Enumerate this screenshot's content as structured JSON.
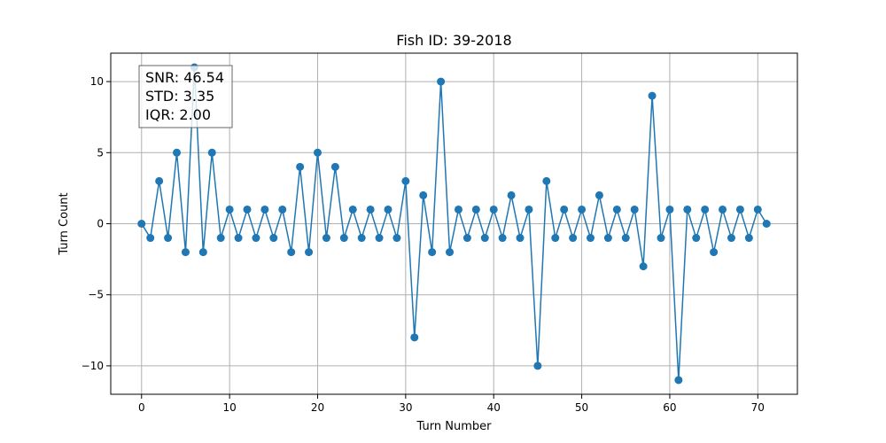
{
  "chart_data": {
    "type": "line",
    "title": "Fish ID: 39-2018",
    "xlabel": "Turn Number",
    "ylabel": "Turn Count",
    "xlim": [
      -3.5,
      74.5
    ],
    "ylim": [
      -12,
      12
    ],
    "x_ticks": [
      0,
      10,
      20,
      30,
      40,
      50,
      60,
      70
    ],
    "y_ticks": [
      -10,
      -5,
      0,
      5,
      10
    ],
    "x_tick_labels": [
      "0",
      "10",
      "20",
      "30",
      "40",
      "50",
      "60",
      "70"
    ],
    "y_tick_labels": [
      "−10",
      "−5",
      "0",
      "5",
      "10"
    ],
    "grid": true,
    "series": [
      {
        "color": "#1f77b4",
        "marker": "circle",
        "x": [
          0,
          1,
          2,
          3,
          4,
          5,
          6,
          7,
          8,
          9,
          10,
          11,
          12,
          13,
          14,
          15,
          16,
          17,
          18,
          19,
          20,
          21,
          22,
          23,
          24,
          25,
          26,
          27,
          28,
          29,
          30,
          31,
          32,
          33,
          34,
          35,
          36,
          37,
          38,
          39,
          40,
          41,
          42,
          43,
          44,
          45,
          46,
          47,
          48,
          49,
          50,
          51,
          52,
          53,
          54,
          55,
          56,
          57,
          58,
          59,
          60,
          61,
          62,
          63,
          64,
          65,
          66,
          67,
          68,
          69,
          70,
          71
        ],
        "values": [
          0,
          -1,
          3,
          -1,
          5,
          -2,
          11,
          -2,
          5,
          -1,
          1,
          -1,
          1,
          -1,
          1,
          -1,
          1,
          -2,
          4,
          -2,
          5,
          -1,
          4,
          -1,
          1,
          -1,
          1,
          -1,
          1,
          -1,
          3,
          -8,
          2,
          -2,
          10,
          -2,
          1,
          -1,
          1,
          -1,
          1,
          -1,
          2,
          -1,
          1,
          -10,
          3,
          -1,
          1,
          -1,
          1,
          -1,
          2,
          -1,
          1,
          -1,
          1,
          -3,
          9,
          -1,
          1,
          -11,
          1,
          -1,
          1,
          -2,
          1,
          -1,
          1,
          -1,
          1,
          0
        ]
      }
    ],
    "annotation": {
      "lines": [
        "SNR: 46.54",
        "STD: 3.35",
        "IQR: 2.00"
      ],
      "placement": "top-left"
    }
  }
}
